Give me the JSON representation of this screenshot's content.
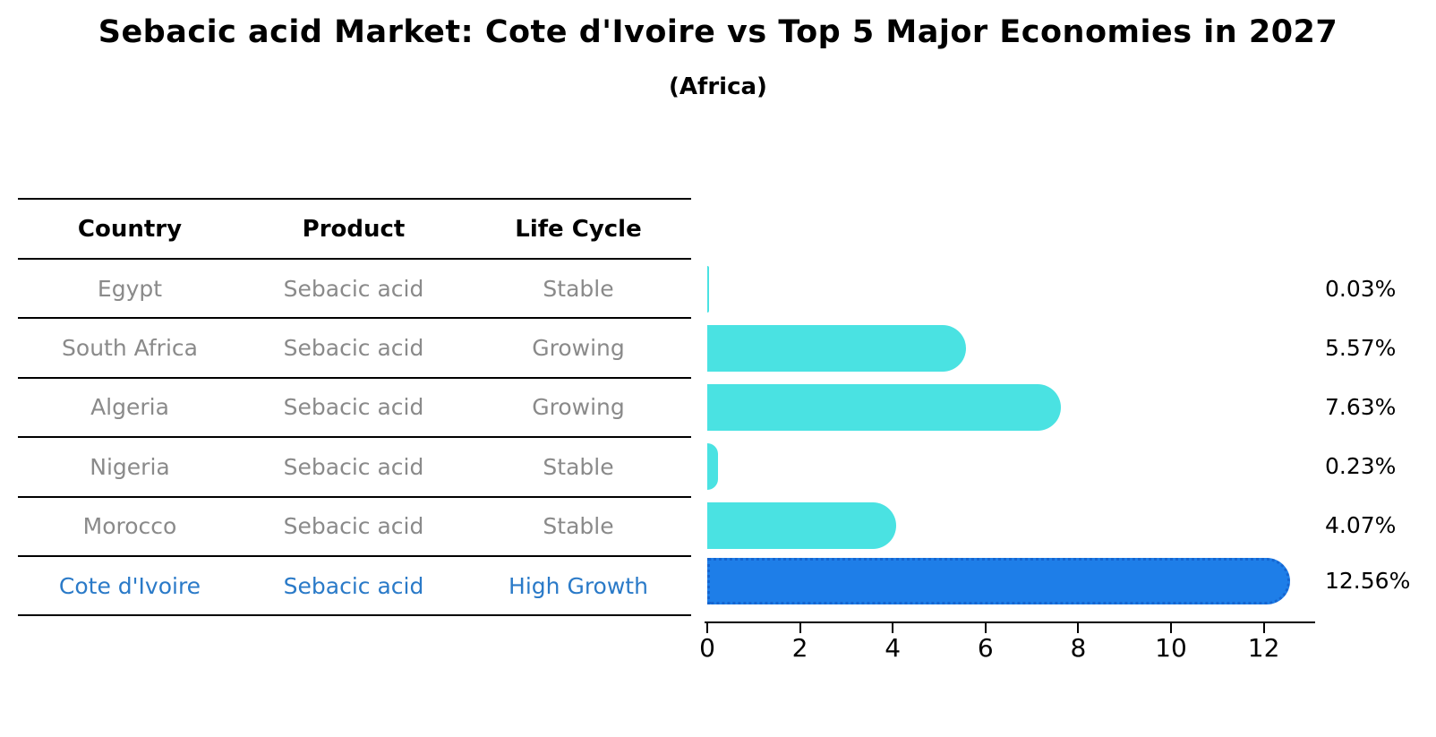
{
  "page": {
    "background": "#ffffff"
  },
  "header": {
    "title": "Sebacic acid Market: Cote d'Ivoire vs Top 5 Major Economies in 2027",
    "subtitle": "(Africa)"
  },
  "table": {
    "headers": [
      "Country",
      "Product",
      "Life Cycle"
    ],
    "rows": [
      {
        "country": "Egypt",
        "product": "Sebacic acid",
        "life_cycle": "Stable",
        "text_color": "#8a8a8a"
      },
      {
        "country": "South Africa",
        "product": "Sebacic acid",
        "life_cycle": "Growing",
        "text_color": "#8a8a8a"
      },
      {
        "country": "Algeria",
        "product": "Sebacic acid",
        "life_cycle": "Growing",
        "text_color": "#8a8a8a"
      },
      {
        "country": "Nigeria",
        "product": "Sebacic acid",
        "life_cycle": "Stable",
        "text_color": "#8a8a8a"
      },
      {
        "country": "Morocco",
        "product": "Sebacic acid",
        "life_cycle": "Stable",
        "text_color": "#8a8a8a"
      },
      {
        "country": "Cote d'Ivoire",
        "product": "Sebacic acid",
        "life_cycle": "High Growth",
        "text_color": "#2a7ac8"
      }
    ]
  },
  "chart_data": {
    "type": "bar",
    "orientation": "horizontal",
    "title": "Sebacic acid Market: Cote d'Ivoire vs Top 5 Major Economies in 2027",
    "subtitle": "(Africa)",
    "categories": [
      "Egypt",
      "South Africa",
      "Algeria",
      "Nigeria",
      "Morocco",
      "Cote d'Ivoire"
    ],
    "values": [
      0.03,
      5.57,
      7.63,
      0.23,
      4.07,
      12.56
    ],
    "value_labels": [
      "0.03%",
      "5.57%",
      "7.63%",
      "0.23%",
      "4.07%",
      "12.56%"
    ],
    "x_ticks": [
      0,
      2,
      4,
      6,
      8,
      10,
      12
    ],
    "xlim": [
      0,
      13.1
    ],
    "grid": false,
    "legend": false,
    "bar_color": "#4ae2e2",
    "highlight_index": 5,
    "highlight_bar_color": "#1e7ee8",
    "highlight_border_color": "#1565d0"
  }
}
